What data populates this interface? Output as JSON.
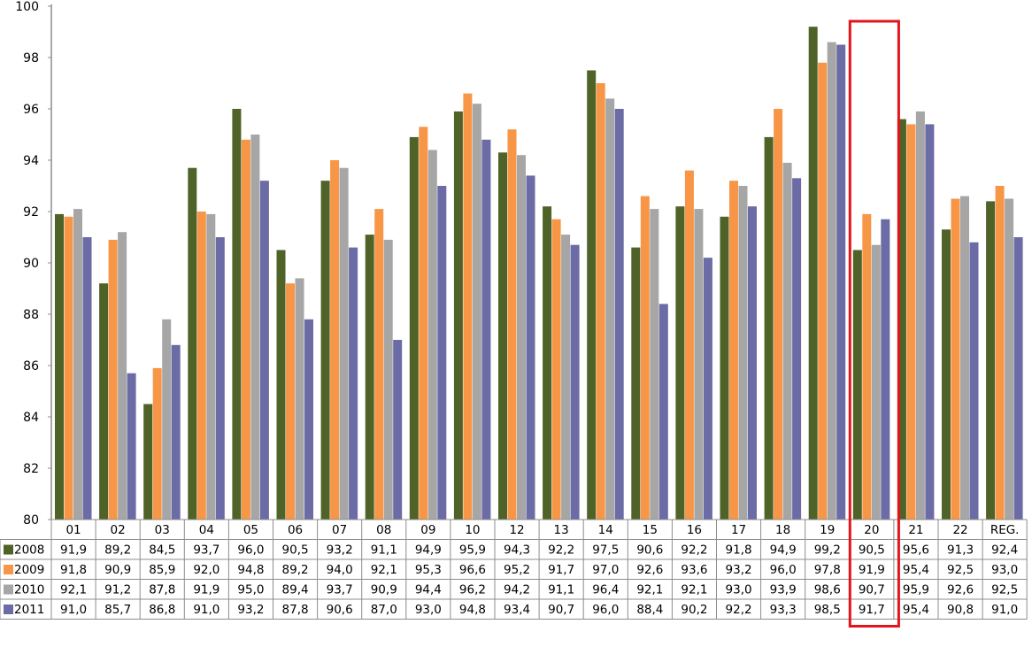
{
  "chart_data": {
    "type": "bar",
    "title": "",
    "xlabel": "",
    "ylabel": "",
    "ylim": [
      80,
      100
    ],
    "yticks": [
      80,
      82,
      84,
      86,
      88,
      90,
      92,
      94,
      96,
      98,
      100
    ],
    "grid": false,
    "legend": "left of data table",
    "categories": [
      "01",
      "02",
      "03",
      "04",
      "05",
      "06",
      "07",
      "08",
      "09",
      "10",
      "12",
      "13",
      "14",
      "15",
      "16",
      "17",
      "18",
      "19",
      "20",
      "21",
      "22",
      "REG."
    ],
    "highlighted_category": "20",
    "highlight_color": "#e3141b",
    "series": [
      {
        "name": "2008",
        "color": "#4f6228",
        "values": [
          91.9,
          89.2,
          84.5,
          93.7,
          96.0,
          90.5,
          93.2,
          91.1,
          94.9,
          95.9,
          94.3,
          92.2,
          97.5,
          90.6,
          92.2,
          91.8,
          94.9,
          99.2,
          90.5,
          95.6,
          91.3,
          92.4
        ],
        "labels": [
          "91,9",
          "89,2",
          "84,5",
          "93,7",
          "96,0",
          "90,5",
          "93,2",
          "91,1",
          "94,9",
          "95,9",
          "94,3",
          "92,2",
          "97,5",
          "90,6",
          "92,2",
          "91,8",
          "94,9",
          "99,2",
          "90,5",
          "95,6",
          "91,3",
          "92,4"
        ]
      },
      {
        "name": "2009",
        "color": "#f79646",
        "values": [
          91.8,
          90.9,
          85.9,
          92.0,
          94.8,
          89.2,
          94.0,
          92.1,
          95.3,
          96.6,
          95.2,
          91.7,
          97.0,
          92.6,
          93.6,
          93.2,
          96.0,
          97.8,
          91.9,
          95.4,
          92.5,
          93.0
        ],
        "labels": [
          "91,8",
          "90,9",
          "85,9",
          "92,0",
          "94,8",
          "89,2",
          "94,0",
          "92,1",
          "95,3",
          "96,6",
          "95,2",
          "91,7",
          "97,0",
          "92,6",
          "93,6",
          "93,2",
          "96,0",
          "97,8",
          "91,9",
          "95,4",
          "92,5",
          "93,0"
        ]
      },
      {
        "name": "2010",
        "color": "#a6a6a6",
        "values": [
          92.1,
          91.2,
          87.8,
          91.9,
          95.0,
          89.4,
          93.7,
          90.9,
          94.4,
          96.2,
          94.2,
          91.1,
          96.4,
          92.1,
          92.1,
          93.0,
          93.9,
          98.6,
          90.7,
          95.9,
          92.6,
          92.5
        ],
        "labels": [
          "92,1",
          "91,2",
          "87,8",
          "91,9",
          "95,0",
          "89,4",
          "93,7",
          "90,9",
          "94,4",
          "96,2",
          "94,2",
          "91,1",
          "96,4",
          "92,1",
          "92,1",
          "93,0",
          "93,9",
          "98,6",
          "90,7",
          "95,9",
          "92,6",
          "92,5"
        ]
      },
      {
        "name": "2011",
        "color": "#6b6ba5",
        "values": [
          91.0,
          85.7,
          86.8,
          91.0,
          93.2,
          87.8,
          90.6,
          87.0,
          93.0,
          94.8,
          93.4,
          90.7,
          96.0,
          88.4,
          90.2,
          92.2,
          93.3,
          98.5,
          91.7,
          95.4,
          90.8,
          91.0
        ],
        "labels": [
          "91,0",
          "85,7",
          "86,8",
          "91,0",
          "93,2",
          "87,8",
          "90,6",
          "87,0",
          "93,0",
          "94,8",
          "93,4",
          "90,7",
          "96,0",
          "88,4",
          "90,2",
          "92,2",
          "93,3",
          "98,5",
          "91,7",
          "95,4",
          "90,8",
          "91,0"
        ]
      }
    ]
  }
}
